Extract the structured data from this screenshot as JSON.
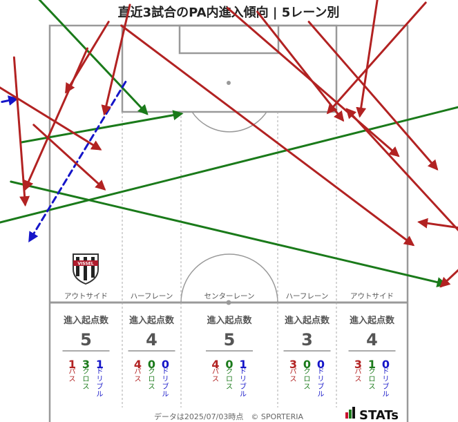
{
  "chart_data": {
    "type": "arrow-map",
    "title": "直近3試合のPA内進入傾向 | 5レーン別",
    "lanes": [
      {
        "name": "アウトサイド",
        "count_label": "進入起点数",
        "total": "5",
        "pass": "1",
        "cross": "3",
        "dribble": "1"
      },
      {
        "name": "ハーフレーン",
        "count_label": "進入起点数",
        "total": "4",
        "pass": "4",
        "cross": "0",
        "dribble": "0"
      },
      {
        "name": "センターレーン",
        "count_label": "進入起点数",
        "total": "5",
        "pass": "4",
        "cross": "0",
        "dribble": "1"
      },
      {
        "name": "ハーフレーン",
        "count_label": "進入起点数",
        "total": "3",
        "pass": "3",
        "cross": "0",
        "dribble": "0"
      },
      {
        "name": "アウトサイド",
        "count_label": "進入起点数",
        "total": "4",
        "pass": "3",
        "cross": "1",
        "dribble": "0"
      }
    ],
    "type_labels": {
      "pass": "パス",
      "cross": "クロス",
      "dribble": "ドリブル"
    },
    "colors": {
      "pass": "#b22222",
      "cross": "#1a7a1a",
      "dribble": "#1515c8",
      "pitch": "#999999"
    },
    "arrows": [
      {
        "kind": "cross",
        "from": [
          -41.0,
          29.4
        ],
        "to": [
          40.8,
          48.7
        ]
      },
      {
        "kind": "cross",
        "from": [
          -48.3,
          38.4
        ],
        "to": [
          54.6,
          12.5
        ]
      },
      {
        "kind": "cross",
        "from": [
          -46.7,
          -16.6
        ],
        "to": [
          -15.4,
          16.6
        ]
      },
      {
        "kind": "cross",
        "from": [
          -39.1,
          22.0
        ],
        "to": [
          -8.9,
          16.6
        ]
      },
      {
        "kind": "dribble",
        "from": [
          -63.7,
          18.7
        ],
        "to": [
          -39.9,
          13.8
        ]
      },
      {
        "kind": "dribble",
        "from": [
          -19.4,
          10.6
        ],
        "to": [
          -37.5,
          40.5
        ]
      },
      {
        "kind": "pass",
        "from": [
          -57.5,
          2.8
        ],
        "to": [
          -24.2,
          23.3
        ]
      },
      {
        "kind": "pass",
        "from": [
          -22.6,
          -0.7
        ],
        "to": [
          -30.6,
          12.5
        ]
      },
      {
        "kind": "pass",
        "from": [
          -26.6,
          4.3
        ],
        "to": [
          -38.3,
          30.8
        ]
      },
      {
        "kind": "pass",
        "from": [
          -40.4,
          6.0
        ],
        "to": [
          -38.3,
          33.7
        ]
      },
      {
        "kind": "pass",
        "from": [
          -36.7,
          18.7
        ],
        "to": [
          -23.4,
          30.8
        ]
      },
      {
        "kind": "pass",
        "from": [
          -18.6,
          -3.9
        ],
        "to": [
          -23.4,
          16.6
        ]
      },
      {
        "kind": "pass",
        "from": [
          -20.2,
          0.0
        ],
        "to": [
          34.7,
          41.3
        ]
      },
      {
        "kind": "pass",
        "from": [
          -0.2,
          -3.3
        ],
        "to": [
          31.9,
          24.5
        ]
      },
      {
        "kind": "pass",
        "from": [
          28.7,
          -9.6
        ],
        "to": [
          24.7,
          17.0
        ]
      },
      {
        "kind": "pass",
        "from": [
          5.4,
          -2.6
        ],
        "to": [
          21.5,
          17.8
        ]
      },
      {
        "kind": "pass",
        "from": [
          37.1,
          -4.3
        ],
        "to": [
          18.7,
          16.4
        ]
      },
      {
        "kind": "pass",
        "from": [
          15.1,
          -0.7
        ],
        "to": [
          39.2,
          27.0
        ]
      },
      {
        "kind": "pass",
        "from": [
          65.4,
          41.3
        ],
        "to": [
          35.9,
          37.0
        ]
      },
      {
        "kind": "pass",
        "from": [
          74.6,
          16.6
        ],
        "to": [
          40.0,
          49.1
        ]
      },
      {
        "kind": "pass",
        "from": [
          52.6,
          48.7
        ],
        "to": [
          22.3,
          15.8
        ]
      }
    ],
    "footer": "データは2025/07/03時点　© SPORTERIA",
    "brand": "STATs",
    "logo_text": "VISSEL"
  }
}
